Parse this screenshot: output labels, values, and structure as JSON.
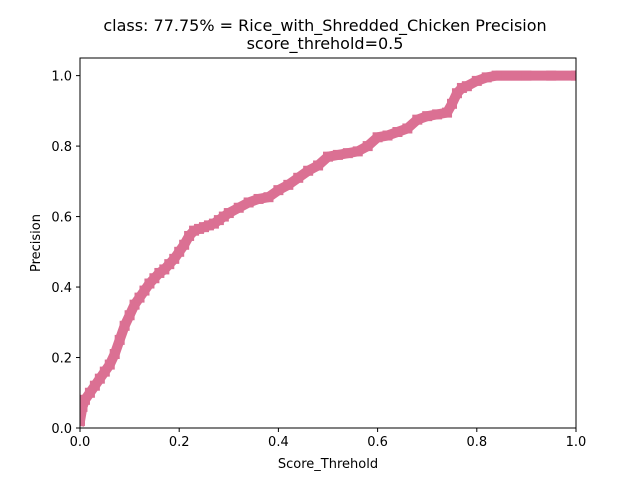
{
  "chart_data": {
    "type": "line",
    "title": "class: 77.75% = Rice_with_Shredded_Chicken Precision",
    "subtitle": "score_threhold=0.5",
    "xlabel": "Score_Threhold",
    "ylabel": "Precision",
    "xlim": [
      0.0,
      1.0
    ],
    "ylim": [
      0.0,
      1.05
    ],
    "xticks": [
      "0.0",
      "0.2",
      "0.4",
      "0.6",
      "0.8",
      "1.0"
    ],
    "yticks": [
      "0.0",
      "0.2",
      "0.4",
      "0.6",
      "0.8",
      "1.0"
    ],
    "grid": false,
    "legend": "none",
    "series": [
      {
        "color": "#db7093",
        "marker": "square",
        "x": [
          0.0,
          0.005,
          0.01,
          0.02,
          0.03,
          0.04,
          0.05,
          0.06,
          0.07,
          0.08,
          0.09,
          0.1,
          0.11,
          0.12,
          0.13,
          0.14,
          0.15,
          0.16,
          0.17,
          0.18,
          0.19,
          0.2,
          0.21,
          0.22,
          0.23,
          0.24,
          0.25,
          0.26,
          0.27,
          0.28,
          0.29,
          0.3,
          0.32,
          0.34,
          0.36,
          0.38,
          0.4,
          0.42,
          0.44,
          0.46,
          0.48,
          0.5,
          0.52,
          0.54,
          0.56,
          0.58,
          0.6,
          0.62,
          0.64,
          0.66,
          0.68,
          0.7,
          0.72,
          0.74,
          0.75,
          0.76,
          0.77,
          0.78,
          0.8,
          0.82,
          0.84,
          0.86,
          0.88,
          0.9,
          0.95,
          1.0
        ],
        "values": [
          0.02,
          0.06,
          0.08,
          0.1,
          0.12,
          0.14,
          0.16,
          0.18,
          0.21,
          0.25,
          0.29,
          0.32,
          0.35,
          0.37,
          0.39,
          0.41,
          0.425,
          0.44,
          0.45,
          0.465,
          0.48,
          0.5,
          0.52,
          0.545,
          0.56,
          0.565,
          0.57,
          0.575,
          0.58,
          0.59,
          0.6,
          0.61,
          0.625,
          0.64,
          0.65,
          0.655,
          0.675,
          0.69,
          0.71,
          0.73,
          0.745,
          0.77,
          0.775,
          0.78,
          0.785,
          0.8,
          0.825,
          0.83,
          0.84,
          0.85,
          0.875,
          0.885,
          0.89,
          0.895,
          0.92,
          0.95,
          0.965,
          0.97,
          0.985,
          0.995,
          1.0,
          1.0,
          1.0,
          1.0,
          1.0,
          1.0
        ]
      }
    ]
  }
}
